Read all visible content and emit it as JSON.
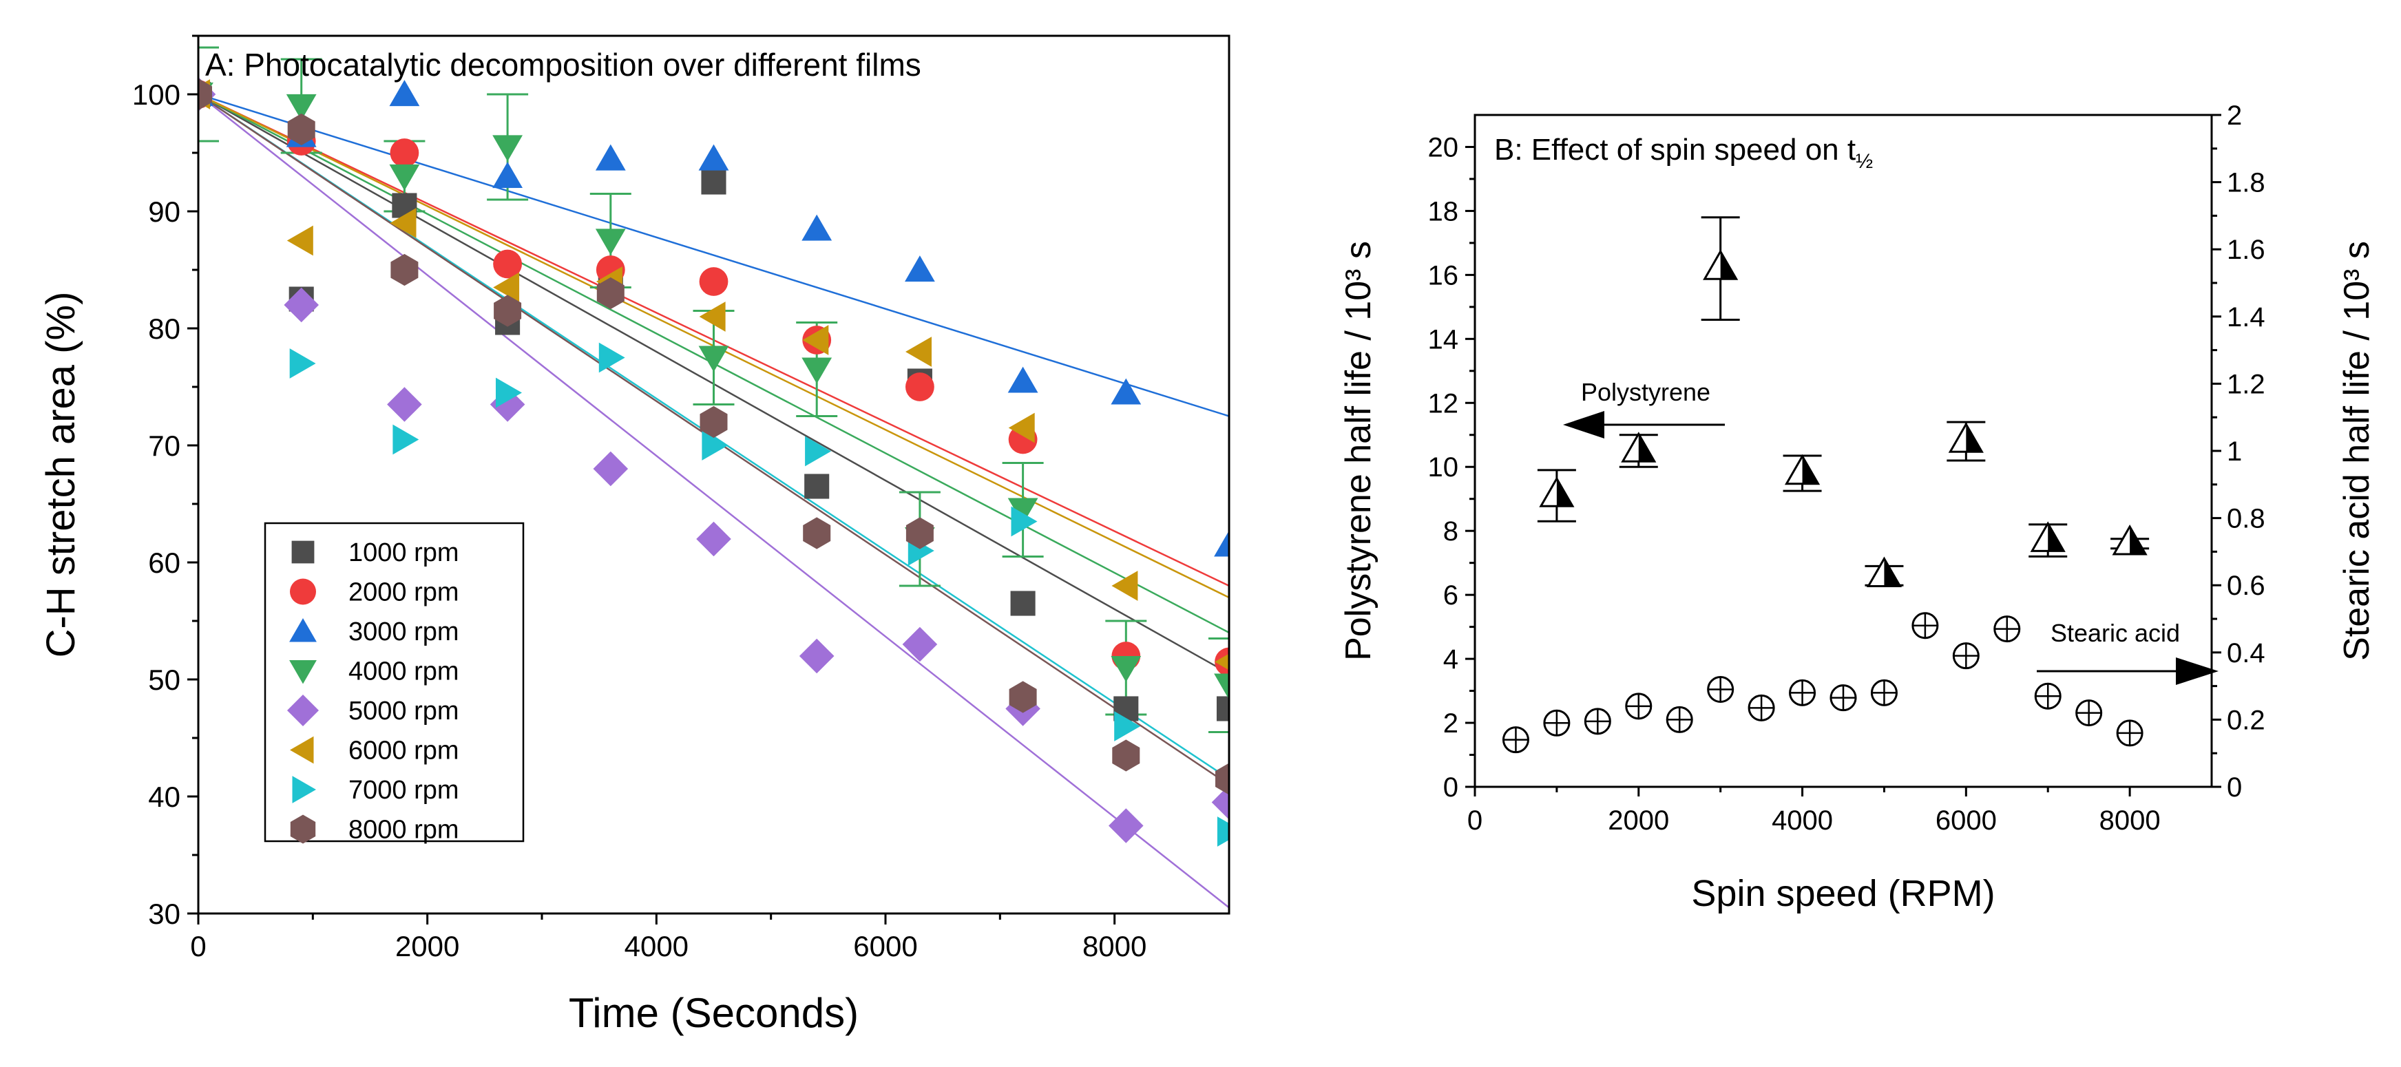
{
  "chart_data": [
    {
      "type": "scatter",
      "title": "A: Photocatalytic decomposition over different films",
      "xlabel": "Time (Seconds)",
      "ylabel": "C-H stretch area (%)",
      "xlim": [
        0,
        9000
      ],
      "ylim": [
        30,
        105
      ],
      "xticks": [
        0,
        2000,
        4000,
        6000,
        8000
      ],
      "yticks": [
        30,
        40,
        50,
        60,
        70,
        80,
        90,
        100
      ],
      "legend_position": "bottom-left",
      "series": [
        {
          "name": "1000 rpm",
          "marker": "square",
          "color": "#4d4d4d",
          "fit": [
            100,
            50.5
          ],
          "points": [
            [
              0,
              100
            ],
            [
              900,
              82.5
            ],
            [
              1800,
              90.5
            ],
            [
              2700,
              80.5
            ],
            [
              3600,
              83.5
            ],
            [
              4500,
              92.5
            ],
            [
              5400,
              66.5
            ],
            [
              6300,
              75.5
            ],
            [
              7200,
              56.5
            ],
            [
              8100,
              47.5
            ],
            [
              9000,
              47.5
            ]
          ]
        },
        {
          "name": "2000 rpm",
          "marker": "circle",
          "color": "#ef3b3b",
          "fit": [
            100,
            58
          ],
          "points": [
            [
              0,
              100
            ],
            [
              900,
              96
            ],
            [
              1800,
              95
            ],
            [
              2700,
              85.5
            ],
            [
              3600,
              85
            ],
            [
              4500,
              84
            ],
            [
              5400,
              79
            ],
            [
              6300,
              75
            ],
            [
              7200,
              70.5
            ],
            [
              8100,
              52
            ],
            [
              9000,
              51.5
            ]
          ]
        },
        {
          "name": "3000 rpm",
          "marker": "triangle-up",
          "color": "#1f6fd8",
          "fit": [
            100,
            72.5
          ],
          "points": [
            [
              0,
              100
            ],
            [
              900,
              96.5
            ],
            [
              1800,
              100
            ],
            [
              2700,
              93
            ],
            [
              3600,
              94.5
            ],
            [
              4500,
              94.5
            ],
            [
              5400,
              88.5
            ],
            [
              6300,
              85
            ],
            [
              7200,
              75.5
            ],
            [
              8100,
              74.5
            ],
            [
              9000,
              61.5
            ]
          ]
        },
        {
          "name": "4000 rpm",
          "marker": "triangle-down",
          "color": "#3aaa5c",
          "fit": [
            100,
            54
          ],
          "points": [
            [
              0,
              100
            ],
            [
              900,
              99
            ],
            [
              1800,
              93
            ],
            [
              2700,
              95.5
            ],
            [
              3600,
              87.5
            ],
            [
              4500,
              77.5
            ],
            [
              5400,
              76.5
            ],
            [
              6300,
              62
            ],
            [
              7200,
              64.5
            ],
            [
              8100,
              51
            ],
            [
              9000,
              49.5
            ]
          ],
          "error": [
            4,
            4,
            3,
            4.5,
            4,
            4,
            4,
            4,
            4,
            4,
            4
          ]
        },
        {
          "name": "5000 rpm",
          "marker": "diamond",
          "color": "#a070d8",
          "fit": [
            100,
            30.5
          ],
          "points": [
            [
              0,
              100
            ],
            [
              900,
              82
            ],
            [
              1800,
              73.5
            ],
            [
              2700,
              73.5
            ],
            [
              3600,
              68
            ],
            [
              4500,
              62
            ],
            [
              5400,
              52
            ],
            [
              6300,
              53
            ],
            [
              7200,
              47.5
            ],
            [
              8100,
              37.5
            ],
            [
              9000,
              39.5
            ]
          ]
        },
        {
          "name": "6000 rpm",
          "marker": "triangle-left",
          "color": "#c9960c",
          "fit": [
            100,
            57
          ],
          "points": [
            [
              0,
              100
            ],
            [
              900,
              87.5
            ],
            [
              1800,
              89
            ],
            [
              2700,
              83.5
            ],
            [
              3600,
              84
            ],
            [
              4500,
              81
            ],
            [
              5400,
              79
            ],
            [
              6300,
              78
            ],
            [
              7200,
              71.5
            ],
            [
              8100,
              58
            ],
            [
              9000,
              51.5
            ]
          ]
        },
        {
          "name": "7000 rpm",
          "marker": "triangle-right",
          "color": "#1fc3cf",
          "fit": [
            100,
            41.5
          ],
          "points": [
            [
              0,
              100
            ],
            [
              900,
              77
            ],
            [
              1800,
              70.5
            ],
            [
              2700,
              74.5
            ],
            [
              3600,
              77.5
            ],
            [
              4500,
              70
            ],
            [
              5400,
              69.5
            ],
            [
              6300,
              61
            ],
            [
              7200,
              63.5
            ],
            [
              8100,
              46
            ],
            [
              9000,
              37
            ]
          ]
        },
        {
          "name": "8000 rpm",
          "marker": "hexagon",
          "color": "#7a5656",
          "fit": [
            100,
            41
          ],
          "points": [
            [
              0,
              100
            ],
            [
              900,
              97
            ],
            [
              1800,
              85
            ],
            [
              2700,
              81.5
            ],
            [
              3600,
              83
            ],
            [
              4500,
              72
            ],
            [
              5400,
              62.5
            ],
            [
              6300,
              62.5
            ],
            [
              7200,
              48.5
            ],
            [
              8100,
              43.5
            ],
            [
              9000,
              41.5
            ]
          ]
        }
      ]
    },
    {
      "type": "scatter",
      "title": "B: Effect of spin speed on t",
      "title_subscript": "½",
      "xlabel": "Spin speed (RPM)",
      "ylabel_left": "Polystyrene half life / 10³ s",
      "ylabel_right": "Stearic acid half life / 10³ s",
      "xlim": [
        0,
        9000
      ],
      "ylim_left": [
        0,
        21
      ],
      "ylim_right": [
        0,
        2
      ],
      "xticks": [
        0,
        2000,
        4000,
        6000,
        8000
      ],
      "yticks_left": [
        0,
        2,
        4,
        6,
        8,
        10,
        12,
        14,
        16,
        18,
        20
      ],
      "yticks_right": [
        0,
        0.2,
        0.4,
        0.6,
        0.8,
        1,
        1.2,
        1.4,
        1.6,
        1.8,
        2
      ],
      "annotations": [
        {
          "text": "Polystyrene",
          "arrow": "left",
          "points_to_axis": "left"
        },
        {
          "text": "Stearic acid",
          "arrow": "right",
          "points_to_axis": "right"
        }
      ],
      "series": [
        {
          "name": "Polystyrene",
          "axis": "left",
          "marker": "half-filled-triangle",
          "x": [
            1000,
            2000,
            3000,
            4000,
            5000,
            6000,
            7000,
            8000
          ],
          "y": [
            9.1,
            10.5,
            16.2,
            9.8,
            6.6,
            10.8,
            7.7,
            7.6
          ],
          "error": [
            0.8,
            0.5,
            1.6,
            0.55,
            0.3,
            0.6,
            0.5,
            0.15
          ]
        },
        {
          "name": "Stearic acid",
          "axis": "right",
          "marker": "circle-plus",
          "x": [
            500,
            1000,
            1500,
            2000,
            2500,
            3000,
            3500,
            4000,
            4500,
            5000,
            5500,
            6000,
            6500,
            7000,
            7500,
            8000
          ],
          "y": [
            0.14,
            0.19,
            0.195,
            0.24,
            0.2,
            0.29,
            0.235,
            0.28,
            0.265,
            0.28,
            0.48,
            0.39,
            0.47,
            0.27,
            0.22,
            0.16
          ]
        }
      ]
    }
  ]
}
